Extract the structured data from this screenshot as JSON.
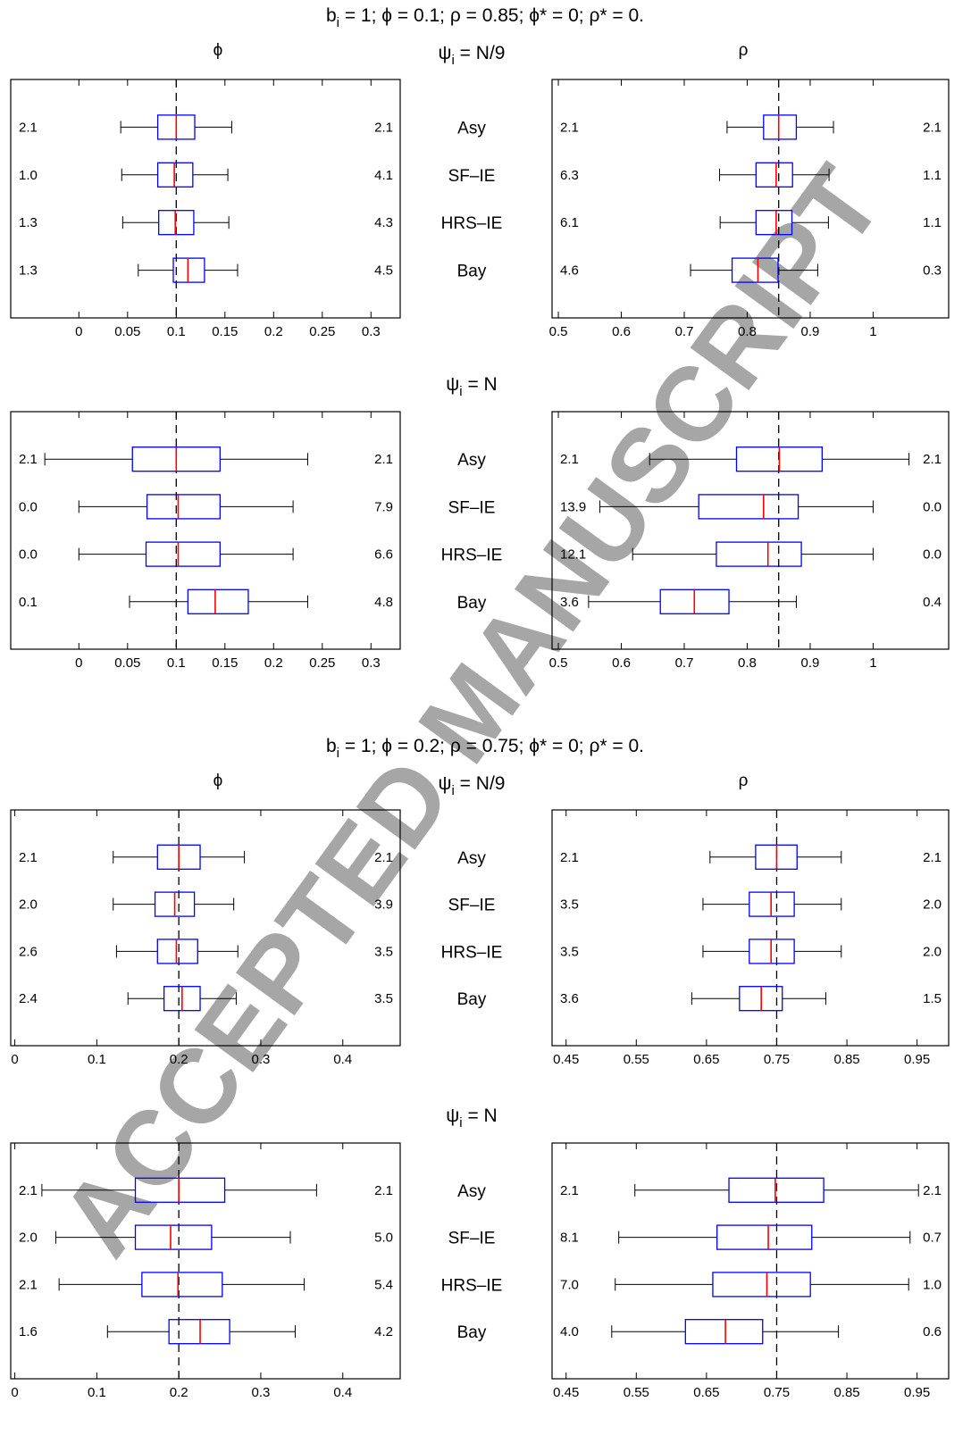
{
  "watermark": {
    "text": "ACCEPTED MANUSCRIPT",
    "color": "#d8d8d8"
  },
  "colors": {
    "box": "#0000ff",
    "median": "#ff0000",
    "whisker": "#000000",
    "reference": "#000000"
  },
  "methods": [
    "Asy",
    "SF–IE",
    "HRS–IE",
    "Bay"
  ],
  "chart_data": [
    {
      "type": "boxplot",
      "title": "b_i = 1; ϕ = 0.1; ρ = 0.85; ϕ* = 0; ρ* = 0.",
      "title_main": "b",
      "title_sub": "i",
      "title_rest": " = 1; ϕ = 0.1; ρ = 0.85; ϕ* = 0; ρ* = 0.",
      "col_labels": [
        "ϕ",
        "ρ"
      ],
      "rows": [
        {
          "label_main": "ψ",
          "label_sub": "i",
          "label_rest": " = N/9",
          "phi": {
            "xlim": [
              -0.07,
              0.33
            ],
            "ticks": [
              0,
              0.05,
              0.1,
              0.15,
              0.2,
              0.25,
              0.3
            ],
            "tick_labels": [
              "0",
              "0.05",
              "0.1",
              "0.15",
              "0.2",
              "0.25",
              "0.3"
            ],
            "true_value": 0.1,
            "left_values": [
              "2.1",
              "1.0",
              "1.3",
              "1.3"
            ],
            "right_values": [
              "2.1",
              "4.1",
              "4.3",
              "4.5"
            ],
            "boxes": [
              {
                "method": "Asy",
                "whisker_low": 0.043,
                "q1": 0.081,
                "median": 0.1,
                "q3": 0.119,
                "whisker_high": 0.157
              },
              {
                "method": "SF–IE",
                "whisker_low": 0.044,
                "q1": 0.081,
                "median": 0.098,
                "q3": 0.117,
                "whisker_high": 0.153
              },
              {
                "method": "HRS–IE",
                "whisker_low": 0.045,
                "q1": 0.082,
                "median": 0.099,
                "q3": 0.118,
                "whisker_high": 0.154
              },
              {
                "method": "Bay",
                "whisker_low": 0.061,
                "q1": 0.097,
                "median": 0.112,
                "q3": 0.129,
                "whisker_high": 0.163
              }
            ]
          },
          "rho": {
            "xlim": [
              0.49,
              1.12
            ],
            "ticks": [
              0.5,
              0.6,
              0.7,
              0.8,
              0.9,
              1
            ],
            "tick_labels": [
              "0.5",
              "0.6",
              "0.7",
              "0.8",
              "0.9",
              "1"
            ],
            "true_value": 0.85,
            "left_values": [
              "2.1",
              "6.3",
              "6.1",
              "4.6"
            ],
            "right_values": [
              "2.1",
              "1.1",
              "1.1",
              "0.3"
            ],
            "boxes": [
              {
                "method": "Asy",
                "whisker_low": 0.768,
                "q1": 0.826,
                "median": 0.85,
                "q3": 0.878,
                "whisker_high": 0.937
              },
              {
                "method": "SF–IE",
                "whisker_low": 0.756,
                "q1": 0.814,
                "median": 0.846,
                "q3": 0.872,
                "whisker_high": 0.93
              },
              {
                "method": "HRS–IE",
                "whisker_low": 0.757,
                "q1": 0.814,
                "median": 0.846,
                "q3": 0.871,
                "whisker_high": 0.929
              },
              {
                "method": "Bay",
                "whisker_low": 0.71,
                "q1": 0.776,
                "median": 0.817,
                "q3": 0.849,
                "whisker_high": 0.912
              }
            ]
          }
        },
        {
          "label_main": "ψ",
          "label_sub": "i",
          "label_rest": " = N",
          "phi": {
            "xlim": [
              -0.07,
              0.33
            ],
            "ticks": [
              0,
              0.05,
              0.1,
              0.15,
              0.2,
              0.25,
              0.3
            ],
            "tick_labels": [
              "0",
              "0.05",
              "0.1",
              "0.15",
              "0.2",
              "0.25",
              "0.3"
            ],
            "true_value": 0.1,
            "left_values": [
              "2.1",
              "0.0",
              "0.0",
              "0.1"
            ],
            "right_values": [
              "2.1",
              "7.9",
              "6.6",
              "4.8"
            ],
            "boxes": [
              {
                "method": "Asy",
                "whisker_low": -0.035,
                "q1": 0.055,
                "median": 0.1,
                "q3": 0.145,
                "whisker_high": 0.235
              },
              {
                "method": "SF–IE",
                "whisker_low": 0.0,
                "q1": 0.07,
                "median": 0.102,
                "q3": 0.145,
                "whisker_high": 0.22
              },
              {
                "method": "HRS–IE",
                "whisker_low": 0.0,
                "q1": 0.069,
                "median": 0.102,
                "q3": 0.145,
                "whisker_high": 0.22
              },
              {
                "method": "Bay",
                "whisker_low": 0.052,
                "q1": 0.112,
                "median": 0.14,
                "q3": 0.174,
                "whisker_high": 0.235
              }
            ]
          },
          "rho": {
            "xlim": [
              0.49,
              1.12
            ],
            "ticks": [
              0.5,
              0.6,
              0.7,
              0.8,
              0.9,
              1
            ],
            "tick_labels": [
              "0.5",
              "0.6",
              "0.7",
              "0.8",
              "0.9",
              "1"
            ],
            "true_value": 0.85,
            "left_values": [
              "2.1",
              "13.9",
              "12.1",
              "3.6"
            ],
            "right_values": [
              "2.1",
              "0.0",
              "0.0",
              "0.4"
            ],
            "boxes": [
              {
                "method": "Asy",
                "whisker_low": 0.645,
                "q1": 0.783,
                "median": 0.851,
                "q3": 0.919,
                "whisker_high": 1.057
              },
              {
                "method": "SF–IE",
                "whisker_low": 0.566,
                "q1": 0.723,
                "median": 0.826,
                "q3": 0.881,
                "whisker_high": 1.0
              },
              {
                "method": "HRS–IE",
                "whisker_low": 0.618,
                "q1": 0.751,
                "median": 0.833,
                "q3": 0.886,
                "whisker_high": 1.0
              },
              {
                "method": "Bay",
                "whisker_low": 0.548,
                "q1": 0.662,
                "median": 0.716,
                "q3": 0.771,
                "whisker_high": 0.878
              }
            ]
          }
        }
      ]
    },
    {
      "type": "boxplot",
      "title": "b_i = 1; ϕ = 0.2; ρ = 0.75; ϕ* = 0; ρ* = 0.",
      "title_main": "b",
      "title_sub": "i",
      "title_rest": " = 1; ϕ = 0.2; ρ = 0.75; ϕ* = 0; ρ* = 0.",
      "col_labels": [
        "ϕ",
        "ρ"
      ],
      "rows": [
        {
          "label_main": "ψ",
          "label_sub": "i",
          "label_rest": " = N/9",
          "phi": {
            "xlim": [
              -0.005,
              0.47
            ],
            "ticks": [
              0,
              0.1,
              0.2,
              0.3,
              0.4
            ],
            "tick_labels": [
              "0",
              "0.1",
              "0.2",
              "0.3",
              "0.4"
            ],
            "true_value": 0.2,
            "left_values": [
              "2.1",
              "2.0",
              "2.6",
              "2.4"
            ],
            "right_values": [
              "2.1",
              "3.9",
              "3.5",
              "3.5"
            ],
            "boxes": [
              {
                "method": "Asy",
                "whisker_low": 0.12,
                "q1": 0.174,
                "median": 0.2,
                "q3": 0.226,
                "whisker_high": 0.28
              },
              {
                "method": "SF–IE",
                "whisker_low": 0.12,
                "q1": 0.171,
                "median": 0.195,
                "q3": 0.219,
                "whisker_high": 0.267
              },
              {
                "method": "HRS–IE",
                "whisker_low": 0.124,
                "q1": 0.174,
                "median": 0.197,
                "q3": 0.223,
                "whisker_high": 0.272
              },
              {
                "method": "Bay",
                "whisker_low": 0.138,
                "q1": 0.182,
                "median": 0.204,
                "q3": 0.226,
                "whisker_high": 0.27
              }
            ]
          },
          "rho": {
            "xlim": [
              0.43,
              0.995
            ],
            "ticks": [
              0.45,
              0.55,
              0.65,
              0.75,
              0.85,
              0.95
            ],
            "tick_labels": [
              "0.45",
              "0.55",
              "0.65",
              "0.75",
              "0.85",
              "0.95"
            ],
            "true_value": 0.75,
            "left_values": [
              "2.1",
              "3.5",
              "3.5",
              "3.6"
            ],
            "right_values": [
              "2.1",
              "2.0",
              "2.0",
              "1.5"
            ],
            "boxes": [
              {
                "method": "Asy",
                "whisker_low": 0.655,
                "q1": 0.72,
                "median": 0.75,
                "q3": 0.779,
                "whisker_high": 0.842
              },
              {
                "method": "SF–IE",
                "whisker_low": 0.645,
                "q1": 0.711,
                "median": 0.742,
                "q3": 0.775,
                "whisker_high": 0.842
              },
              {
                "method": "HRS–IE",
                "whisker_low": 0.645,
                "q1": 0.711,
                "median": 0.742,
                "q3": 0.775,
                "whisker_high": 0.842
              },
              {
                "method": "Bay",
                "whisker_low": 0.629,
                "q1": 0.697,
                "median": 0.728,
                "q3": 0.758,
                "whisker_high": 0.82
              }
            ]
          }
        },
        {
          "label_main": "ψ",
          "label_sub": "i",
          "label_rest": " = N",
          "phi": {
            "xlim": [
              -0.005,
              0.47
            ],
            "ticks": [
              0,
              0.1,
              0.2,
              0.3,
              0.4
            ],
            "tick_labels": [
              "0",
              "0.1",
              "0.2",
              "0.3",
              "0.4"
            ],
            "true_value": 0.2,
            "left_values": [
              "2.1",
              "2.0",
              "2.1",
              "1.6"
            ],
            "right_values": [
              "2.1",
              "5.0",
              "5.4",
              "4.2"
            ],
            "boxes": [
              {
                "method": "Asy",
                "whisker_low": 0.033,
                "q1": 0.147,
                "median": 0.2,
                "q3": 0.256,
                "whisker_high": 0.368
              },
              {
                "method": "SF–IE",
                "whisker_low": 0.05,
                "q1": 0.147,
                "median": 0.19,
                "q3": 0.24,
                "whisker_high": 0.336
              },
              {
                "method": "HRS–IE",
                "whisker_low": 0.054,
                "q1": 0.155,
                "median": 0.199,
                "q3": 0.253,
                "whisker_high": 0.353
              },
              {
                "method": "Bay",
                "whisker_low": 0.113,
                "q1": 0.188,
                "median": 0.226,
                "q3": 0.262,
                "whisker_high": 0.342
              }
            ]
          },
          "rho": {
            "xlim": [
              0.43,
              0.995
            ],
            "ticks": [
              0.45,
              0.55,
              0.65,
              0.75,
              0.85,
              0.95
            ],
            "tick_labels": [
              "0.45",
              "0.55",
              "0.65",
              "0.75",
              "0.85",
              "0.95"
            ],
            "true_value": 0.75,
            "left_values": [
              "2.1",
              "8.1",
              "7.0",
              "4.0"
            ],
            "right_values": [
              "2.1",
              "0.7",
              "1.0",
              "0.6"
            ],
            "boxes": [
              {
                "method": "Asy",
                "whisker_low": 0.548,
                "q1": 0.682,
                "median": 0.748,
                "q3": 0.817,
                "whisker_high": 0.952
              },
              {
                "method": "SF–IE",
                "whisker_low": 0.525,
                "q1": 0.665,
                "median": 0.738,
                "q3": 0.8,
                "whisker_high": 0.94
              },
              {
                "method": "HRS–IE",
                "whisker_low": 0.52,
                "q1": 0.659,
                "median": 0.736,
                "q3": 0.798,
                "whisker_high": 0.938
              },
              {
                "method": "Bay",
                "whisker_low": 0.515,
                "q1": 0.62,
                "median": 0.677,
                "q3": 0.73,
                "whisker_high": 0.838
              }
            ]
          }
        }
      ]
    }
  ]
}
